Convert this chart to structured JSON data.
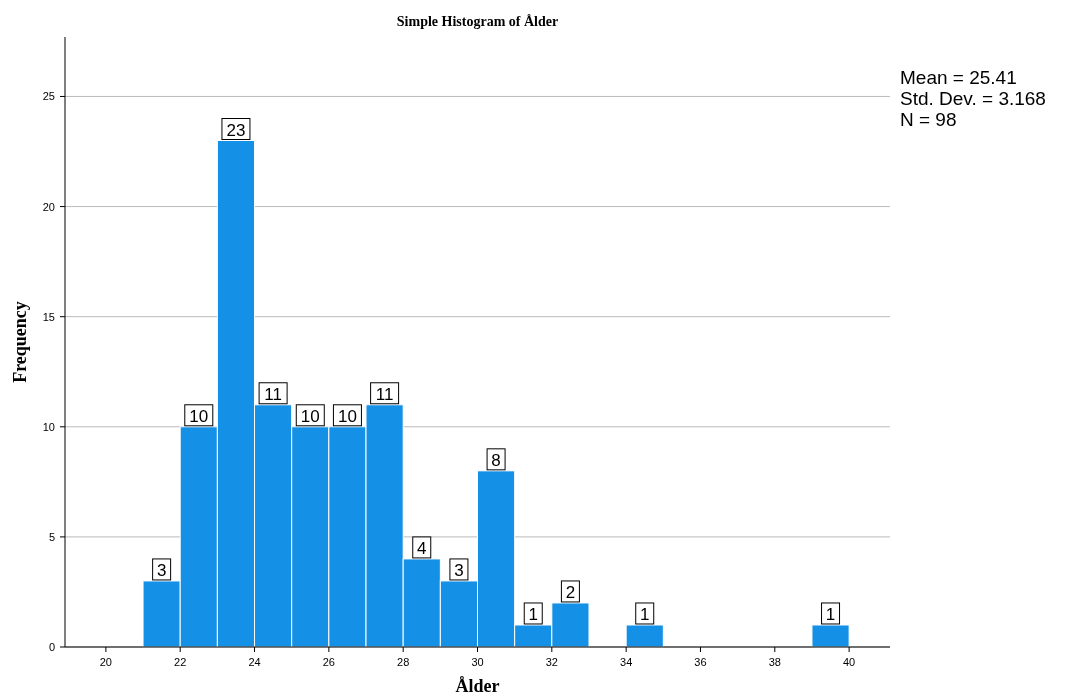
{
  "chart_data": {
    "type": "histogram",
    "title": "Simple Histogram of Ålder",
    "xlabel": "Ålder",
    "ylabel": "Frequency",
    "bins": [
      21,
      22,
      23,
      24,
      25,
      26,
      27,
      28,
      29,
      30,
      31,
      32,
      33,
      34,
      35,
      36,
      37,
      38,
      39,
      40
    ],
    "values": [
      3,
      10,
      23,
      11,
      10,
      10,
      11,
      4,
      3,
      8,
      1,
      2,
      0,
      1,
      0,
      0,
      0,
      0,
      1
    ],
    "value_labels": [
      "3",
      "10",
      "23",
      "11",
      "10",
      "10",
      "11",
      "4",
      "3",
      "8",
      "1",
      "2",
      null,
      "1",
      null,
      null,
      null,
      null,
      "1"
    ],
    "color": "#1490e6",
    "xlim": [
      18.9,
      41.1
    ],
    "xticks": [
      20,
      22,
      24,
      26,
      28,
      30,
      32,
      34,
      36,
      38,
      40
    ],
    "ylim": [
      0,
      27.7
    ],
    "yticks": [
      0,
      5,
      10,
      15,
      20,
      25
    ],
    "grid": "y",
    "annotations": [
      "Mean = 25.41",
      "Std. Dev. = 3.168",
      "N = 98"
    ]
  }
}
